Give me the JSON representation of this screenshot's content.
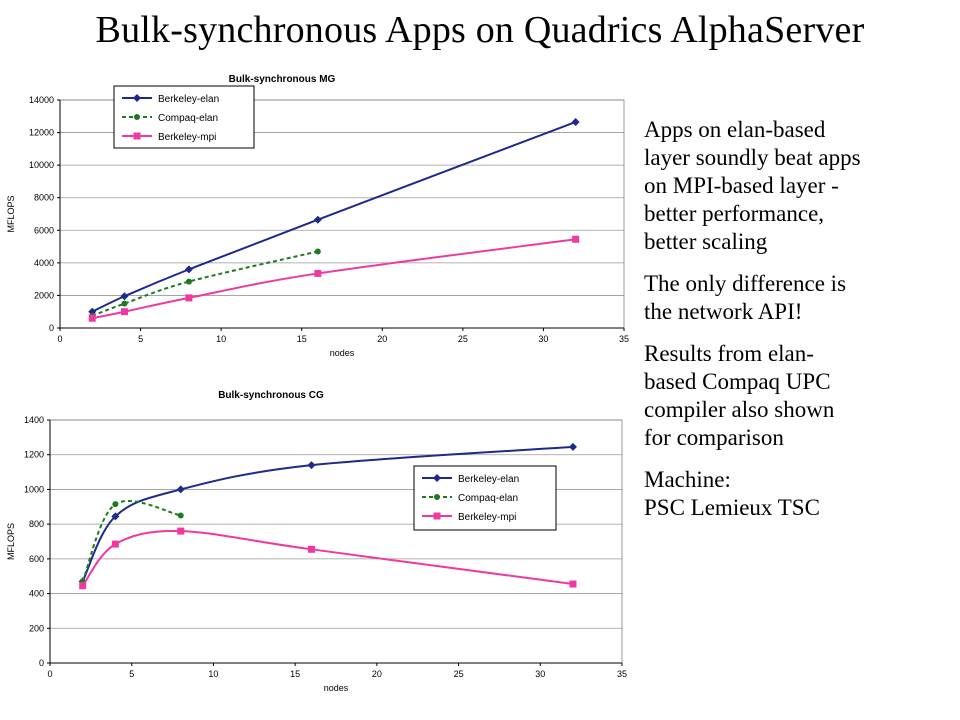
{
  "slide": {
    "title": "Bulk-synchronous  Apps on Quadrics AlphaServer",
    "bullets": [
      {
        "lines": [
          "Apps on elan-based",
          "layer soundly beat apps",
          "on MPI-based layer -",
          "better performance,",
          "better scaling"
        ]
      },
      {
        "lines": [
          "The only difference is",
          "the network API!"
        ]
      },
      {
        "lines": [
          "Results from elan-",
          "based Compaq UPC",
          "compiler also shown",
          "for comparison"
        ]
      },
      {
        "lines": [
          "Machine:",
          "PSC Lemieux TSC"
        ]
      }
    ]
  },
  "colors": {
    "berkeley_elan": "#1c2a8c",
    "compaq_elan": "#1e7a1e",
    "berkeley_mpi": "#ee3aa0",
    "grid": "#9a9a9a",
    "plot_border": "#808080"
  },
  "chart_data": [
    {
      "type": "line",
      "title": "Bulk-synchronous MG",
      "xlabel": "nodes",
      "ylabel": "MFLOPS",
      "xlim": [
        0,
        35
      ],
      "ylim": [
        0,
        14000
      ],
      "xticks": [
        0,
        5,
        10,
        15,
        20,
        25,
        30,
        35
      ],
      "yticks": [
        0,
        2000,
        4000,
        6000,
        8000,
        10000,
        12000,
        14000
      ],
      "grid": true,
      "legend": "top-left",
      "series": [
        {
          "name": "Berkeley-elan",
          "x": [
            2,
            4,
            8,
            16,
            32
          ],
          "y": [
            1000,
            1950,
            3600,
            6650,
            12650
          ],
          "marker": "diamond",
          "dash": "solid",
          "color_key": "berkeley_elan"
        },
        {
          "name": "Compaq-elan",
          "x": [
            2,
            4,
            8,
            16
          ],
          "y": [
            750,
            1500,
            2850,
            4700
          ],
          "marker": "circle",
          "dash": "dashed",
          "color_key": "compaq_elan"
        },
        {
          "name": "Berkeley-mpi",
          "x": [
            2,
            4,
            8,
            16,
            32
          ],
          "y": [
            600,
            1000,
            1850,
            3350,
            5450
          ],
          "marker": "square",
          "dash": "solid",
          "color_key": "berkeley_mpi"
        }
      ]
    },
    {
      "type": "line",
      "title": "Bulk-synchronous CG",
      "xlabel": "nodes",
      "ylabel": "MFLOPS",
      "xlim": [
        0,
        35
      ],
      "ylim": [
        0,
        1400
      ],
      "xticks": [
        0,
        5,
        10,
        15,
        20,
        25,
        30,
        35
      ],
      "yticks": [
        0,
        200,
        400,
        600,
        800,
        1000,
        1200,
        1400
      ],
      "grid": true,
      "legend": "right",
      "series": [
        {
          "name": "Berkeley-elan",
          "x": [
            2,
            4,
            8,
            16,
            32
          ],
          "y": [
            470,
            845,
            1000,
            1140,
            1245
          ],
          "marker": "diamond",
          "dash": "solid",
          "color_key": "berkeley_elan"
        },
        {
          "name": "Compaq-elan",
          "x": [
            2,
            4,
            8
          ],
          "y": [
            470,
            915,
            850
          ],
          "marker": "circle",
          "dash": "dashed",
          "color_key": "compaq_elan"
        },
        {
          "name": "Berkeley-mpi",
          "x": [
            2,
            4,
            8,
            16,
            32
          ],
          "y": [
            445,
            685,
            760,
            655,
            455
          ],
          "marker": "square",
          "dash": "solid",
          "color_key": "berkeley_mpi"
        }
      ]
    }
  ]
}
